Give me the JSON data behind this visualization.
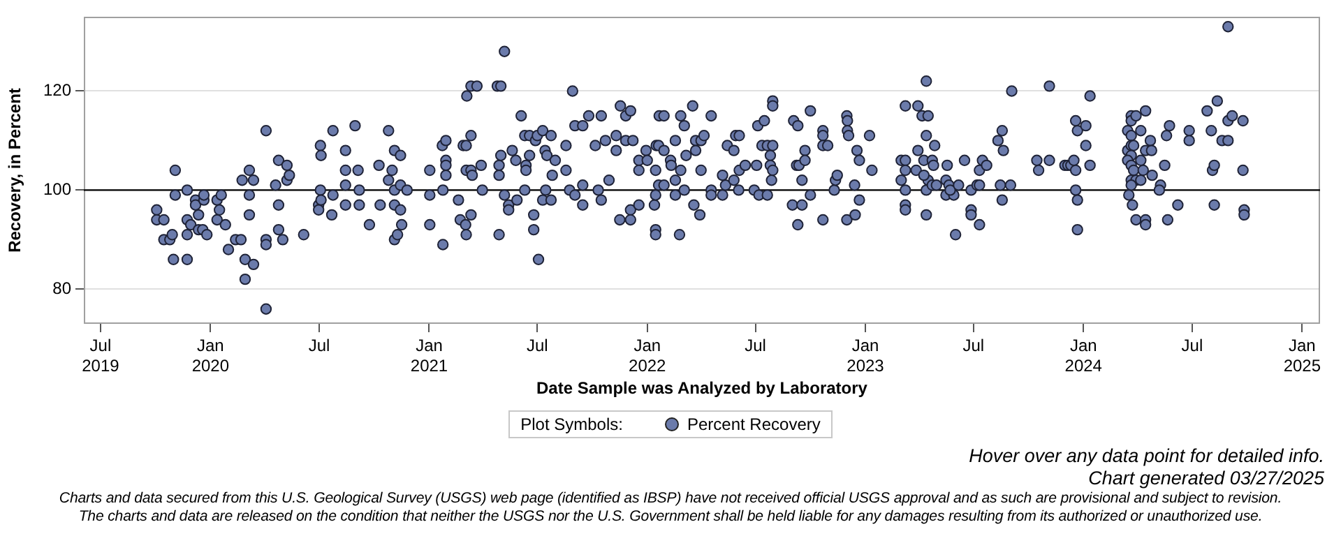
{
  "chart_data": {
    "type": "scatter",
    "xlabel": "Date Sample was Analyzed by Laboratory",
    "ylabel": "Recovery, in Percent",
    "legend_title": "Plot Symbols:",
    "legend": "bottom",
    "marker": "circle",
    "grid": "y",
    "xlim": [
      "2019-06-03",
      "2025-01-31"
    ],
    "xticks": [
      {
        "value": "2019-07-01",
        "label": "Jul 2019"
      },
      {
        "value": "2020-01-01",
        "label": "Jan 2020"
      },
      {
        "value": "2020-07-01",
        "label": "Jul"
      },
      {
        "value": "2021-01-01",
        "label": "Jan 2021"
      },
      {
        "value": "2021-07-01",
        "label": "Jul"
      },
      {
        "value": "2022-01-01",
        "label": "Jan 2022"
      },
      {
        "value": "2022-07-01",
        "label": "Jul"
      },
      {
        "value": "2023-01-01",
        "label": "Jan 2023"
      },
      {
        "value": "2023-07-01",
        "label": "Jul"
      },
      {
        "value": "2024-01-01",
        "label": "Jan 2024"
      },
      {
        "value": "2024-07-01",
        "label": "Jul"
      },
      {
        "value": "2025-01-01",
        "label": "Jan 2025"
      }
    ],
    "ylim": [
      73,
      135
    ],
    "yticks": [
      80,
      100,
      120
    ],
    "ref_lines": [
      {
        "axis": "y",
        "value": 100,
        "color": "#000000"
      }
    ],
    "annotations": [
      "Hover over any data point for detailed info.",
      "Chart generated 03/27/2025",
      "Charts and data secured from this U.S. Geological Survey (USGS) web page (identified as IBSP) have not received official USGS approval and as such are provisional and subject to revision.",
      "The charts and data are released on the condition that neither the USGS nor the U.S. Government shall be held liable for any damages resulting from its authorized or unauthorized use."
    ],
    "series": [
      {
        "name": "Percent Recovery",
        "color": "#6b7bab",
        "x": [
          "2019-10-03",
          "2019-10-03",
          "2019-10-15",
          "2019-10-15",
          "2019-10-25",
          "2019-10-29",
          "2019-10-31",
          "2019-11-03",
          "2019-11-03",
          "2019-11-23",
          "2019-11-23",
          "2019-11-23",
          "2019-11-23",
          "2019-11-29",
          "2019-12-07",
          "2019-12-07",
          "2019-12-12",
          "2019-12-12",
          "2019-12-21",
          "2019-12-21",
          "2019-12-19",
          "2019-12-26",
          "2020-01-12",
          "2020-01-16",
          "2020-01-19",
          "2020-01-12",
          "2020-01-26",
          "2020-01-31",
          "2020-02-12",
          "2020-02-21",
          "2020-02-23",
          "2020-02-28",
          "2020-02-28",
          "2020-03-06",
          "2020-03-06",
          "2020-03-06",
          "2020-03-13",
          "2020-03-13",
          "2020-04-03",
          "2020-04-03",
          "2020-04-03",
          "2020-04-03",
          "2020-04-19",
          "2020-04-24",
          "2020-04-24",
          "2020-04-24",
          "2020-05-01",
          "2020-05-08",
          "2020-05-08",
          "2020-05-12",
          "2020-06-05",
          "2020-07-03",
          "2020-07-04",
          "2020-07-03",
          "2020-06-30",
          "2020-06-30",
          "2020-07-04",
          "2020-07-22",
          "2020-07-24",
          "2020-07-24",
          "2020-08-14",
          "2020-08-14",
          "2020-08-14",
          "2020-08-14",
          "2020-08-30",
          "2020-09-04",
          "2020-09-06",
          "2020-09-06",
          "2020-09-23",
          "2020-10-09",
          "2020-10-11",
          "2020-10-25",
          "2020-10-25",
          "2020-10-31",
          "2020-11-04",
          "2020-11-04",
          "2020-11-04",
          "2020-11-04",
          "2020-11-09",
          "2020-11-14",
          "2020-11-14",
          "2020-11-14",
          "2020-11-16",
          "2020-11-25",
          "2021-01-02",
          "2021-01-02",
          "2021-01-02",
          "2021-01-23",
          "2021-01-29",
          "2021-01-24",
          "2021-01-29",
          "2021-01-29",
          "2021-01-29",
          "2021-01-24",
          "2021-02-19",
          "2021-02-22",
          "2021-02-27",
          "2021-03-04",
          "2021-03-04",
          "2021-03-03",
          "2021-03-05",
          "2021-03-12",
          "2021-03-22",
          "2021-03-12",
          "2021-03-12",
          "2021-03-14",
          "2021-03-12",
          "2021-03-04",
          "2021-03-29",
          "2021-03-31",
          "2021-04-25",
          "2021-05-01",
          "2021-04-28",
          "2021-04-28",
          "2021-05-01",
          "2021-04-28",
          "2021-05-07",
          "2021-05-07",
          "2021-05-14",
          "2021-05-14",
          "2021-05-20",
          "2021-05-26",
          "2021-05-28",
          "2021-06-04",
          "2021-06-10",
          "2021-06-12",
          "2021-06-12",
          "2021-06-10",
          "2021-06-18",
          "2021-06-18",
          "2021-06-28",
          "2021-07-01",
          "2021-07-10",
          "2021-07-14",
          "2021-07-17",
          "2021-07-24",
          "2021-07-31",
          "2021-07-26",
          "2021-07-15",
          "2021-07-10",
          "2021-07-24",
          "2021-06-25",
          "2021-06-25",
          "2021-07-03",
          "2021-08-18",
          "2021-08-18",
          "2021-08-24",
          "2021-08-29",
          "2021-09-02",
          "2021-09-02",
          "2021-09-15",
          "2021-09-15",
          "2021-09-15",
          "2021-09-25",
          "2021-10-06",
          "2021-10-11",
          "2021-10-16",
          "2021-10-16",
          "2021-10-23",
          "2021-10-29",
          "2021-11-10",
          "2021-11-10",
          "2021-11-17",
          "2021-11-16",
          "2021-11-26",
          "2021-12-04",
          "2021-11-26",
          "2021-12-04",
          "2021-12-04",
          "2021-12-08",
          "2021-12-18",
          "2021-12-18",
          "2021-12-18",
          "2021-12-30",
          "2022-01-01",
          "2022-01-15",
          "2022-01-16",
          "2022-01-20",
          "2022-01-21",
          "2022-01-29",
          "2022-01-29",
          "2022-01-13",
          "2022-01-15",
          "2022-01-20",
          "2022-01-15",
          "2022-01-15",
          "2022-01-29",
          "2022-02-09",
          "2022-02-10",
          "2022-02-17",
          "2022-02-17",
          "2022-02-17",
          "2022-02-24",
          "2022-02-26",
          "2022-02-26",
          "2022-03-04",
          "2022-03-07",
          "2022-03-04",
          "2022-03-18",
          "2022-03-20",
          "2022-03-23",
          "2022-03-23",
          "2022-04-01",
          "2022-04-01",
          "2022-03-30",
          "2022-04-06",
          "2022-04-18",
          "2022-04-18",
          "2022-04-18",
          "2022-05-07",
          "2022-05-12",
          "2022-05-07",
          "2022-05-15",
          "2022-05-26",
          "2022-05-26",
          "2022-05-29",
          "2022-06-04",
          "2022-06-03",
          "2022-06-04",
          "2022-06-14",
          "2022-07-05",
          "2022-07-16",
          "2022-07-03",
          "2022-06-29",
          "2022-07-07",
          "2022-07-12",
          "2022-07-21",
          "2022-07-21",
          "2022-07-26",
          "2022-07-26",
          "2022-07-30",
          "2022-07-30",
          "2022-07-30",
          "2022-07-30",
          "2022-07-28",
          "2022-09-03",
          "2022-09-10",
          "2022-09-08",
          "2022-09-12",
          "2022-09-22",
          "2022-09-22",
          "2022-09-17",
          "2022-09-01",
          "2022-09-17",
          "2022-09-10",
          "2022-10-01",
          "2022-10-01",
          "2022-10-22",
          "2022-10-22",
          "2022-10-22",
          "2022-10-30",
          "2022-10-22",
          "2022-11-10",
          "2022-11-12",
          "2022-11-15",
          "2022-12-01",
          "2022-12-02",
          "2022-12-02",
          "2022-12-04",
          "2022-12-01",
          "2022-12-14",
          "2022-12-15",
          "2022-12-22",
          "2022-12-18",
          "2022-12-22",
          "2023-01-08",
          "2023-01-12",
          "2023-03-09",
          "2023-03-02",
          "2023-03-09",
          "2023-03-09",
          "2023-03-02",
          "2023-03-09",
          "2023-03-09",
          "2023-03-09",
          "2023-03-30",
          "2023-04-06",
          "2023-04-16",
          "2023-04-13",
          "2023-04-13",
          "2023-03-30",
          "2023-04-09",
          "2023-03-27",
          "2023-04-16",
          "2023-04-13",
          "2023-04-09",
          "2023-04-13",
          "2023-04-23",
          "2023-04-25",
          "2023-04-27",
          "2023-04-23",
          "2023-04-30",
          "2023-05-18",
          "2023-05-16",
          "2023-05-21",
          "2023-05-16",
          "2023-05-29",
          "2023-05-23",
          "2023-06-06",
          "2023-06-16",
          "2023-06-01",
          "2023-06-27",
          "2023-06-27",
          "2023-06-27",
          "2023-07-07",
          "2023-07-11",
          "2023-07-11",
          "2023-07-16",
          "2023-07-23",
          "2023-07-11",
          "2023-08-11",
          "2023-08-18",
          "2023-08-20",
          "2023-08-15",
          "2023-09-01",
          "2023-08-18",
          "2023-09-03",
          "2023-10-15",
          "2023-10-18",
          "2023-11-05",
          "2023-11-05",
          "2023-12-01",
          "2023-12-06",
          "2023-12-11",
          "2023-12-16",
          "2023-12-19",
          "2023-12-19",
          "2023-12-22",
          "2024-01-05",
          "2024-01-05",
          "2024-01-12",
          "2024-01-12",
          "2023-12-19",
          "2023-12-22",
          "2023-12-22",
          "2024-03-21",
          "2024-03-15",
          "2024-03-21",
          "2024-03-29",
          "2024-04-06",
          "2024-04-14",
          "2024-03-21",
          "2024-03-15",
          "2024-03-21",
          "2024-03-25",
          "2024-03-21",
          "2024-04-06",
          "2024-04-14",
          "2024-04-22",
          "2024-04-24",
          "2024-03-15",
          "2024-03-21",
          "2024-03-25",
          "2024-04-10",
          "2024-03-21",
          "2024-03-29",
          "2024-04-06",
          "2024-04-25",
          "2024-03-21",
          "2024-03-17",
          "2024-03-23",
          "2024-03-29",
          "2024-04-14",
          "2024-04-14",
          "2024-05-19",
          "2024-05-24",
          "2024-05-16",
          "2024-05-09",
          "2024-05-07",
          "2024-05-21",
          "2024-06-07",
          "2024-06-26",
          "2024-06-26",
          "2024-07-26",
          "2024-08-12",
          "2024-08-02",
          "2024-08-30",
          "2024-08-30",
          "2024-09-06",
          "2024-08-20",
          "2024-08-30",
          "2024-08-04",
          "2024-08-07",
          "2024-08-07",
          "2024-09-24",
          "2024-09-24",
          "2024-09-26",
          "2024-09-26"
        ],
        "values": [
          96,
          94,
          94,
          90,
          90,
          91,
          86,
          104,
          99,
          100,
          94,
          86,
          91,
          93,
          98,
          97,
          95,
          92,
          98,
          99,
          92,
          91,
          98,
          96,
          99,
          94,
          93,
          88,
          90,
          90,
          102,
          86,
          82,
          104,
          99,
          95,
          102,
          85,
          112,
          90,
          89,
          76,
          101,
          106,
          97,
          92,
          90,
          105,
          102,
          103,
          91,
          109,
          107,
          100,
          97,
          96,
          98,
          95,
          112,
          99,
          108,
          104,
          101,
          97,
          113,
          104,
          100,
          97,
          93,
          105,
          97,
          112,
          102,
          104,
          108,
          100,
          97,
          90,
          91,
          107,
          101,
          96,
          93,
          100,
          104,
          99,
          93,
          109,
          110,
          100,
          106,
          105,
          103,
          89,
          98,
          94,
          109,
          109,
          104,
          93,
          119,
          121,
          121,
          111,
          104,
          103,
          95,
          91,
          105,
          100,
          121,
          121,
          105,
          103,
          107,
          91,
          128,
          99,
          97,
          96,
          108,
          106,
          98,
          115,
          111,
          105,
          104,
          100,
          107,
          111,
          110,
          111,
          112,
          108,
          107,
          111,
          106,
          103,
          100,
          98,
          98,
          95,
          92,
          86,
          109,
          104,
          100,
          120,
          113,
          99,
          113,
          101,
          97,
          115,
          109,
          100,
          115,
          98,
          110,
          102,
          111,
          108,
          117,
          94,
          115,
          116,
          110,
          96,
          94,
          110,
          106,
          104,
          97,
          108,
          106,
          104,
          109,
          109,
          115,
          115,
          108,
          97,
          99,
          101,
          92,
          91,
          101,
          106,
          105,
          110,
          102,
          99,
          91,
          115,
          104,
          113,
          107,
          100,
          117,
          97,
          110,
          108,
          110,
          104,
          95,
          111,
          115,
          100,
          99,
          99,
          101,
          103,
          109,
          108,
          102,
          111,
          111,
          100,
          104,
          105,
          113,
          114,
          105,
          100,
          99,
          109,
          109,
          99,
          107,
          105,
          118,
          117,
          109,
          104,
          102,
          114,
          113,
          105,
          105,
          108,
          106,
          102,
          97,
          97,
          93,
          116,
          99,
          112,
          111,
          109,
          109,
          94,
          100,
          102,
          103,
          115,
          114,
          112,
          111,
          94,
          101,
          95,
          98,
          108,
          106,
          111,
          104,
          117,
          106,
          106,
          104,
          102,
          100,
          97,
          96,
          117,
          115,
          115,
          122,
          111,
          108,
          106,
          104,
          102,
          100,
          103,
          95,
          106,
          105,
          109,
          101,
          101,
          105,
          102,
          101,
          99,
          99,
          100,
          101,
          106,
          91,
          100,
          96,
          95,
          101,
          101,
          104,
          106,
          105,
          93,
          110,
          112,
          108,
          101,
          101,
          98,
          120,
          106,
          104,
          121,
          106,
          105,
          105,
          105,
          106,
          104,
          114,
          112,
          113,
          109,
          119,
          105,
          100,
          98,
          92,
          115,
          112,
          114,
          115,
          112,
          116,
          111,
          108,
          109,
          109,
          107,
          106,
          108,
          110,
          108,
          106,
          105,
          104,
          104,
          102,
          102,
          102,
          103,
          101,
          99,
          97,
          94,
          94,
          93,
          111,
          113,
          105,
          101,
          100,
          94,
          97,
          112,
          110,
          116,
          118,
          112,
          133,
          114,
          115,
          110,
          110,
          104,
          105,
          97,
          114,
          104,
          96,
          95
        ]
      }
    ]
  }
}
